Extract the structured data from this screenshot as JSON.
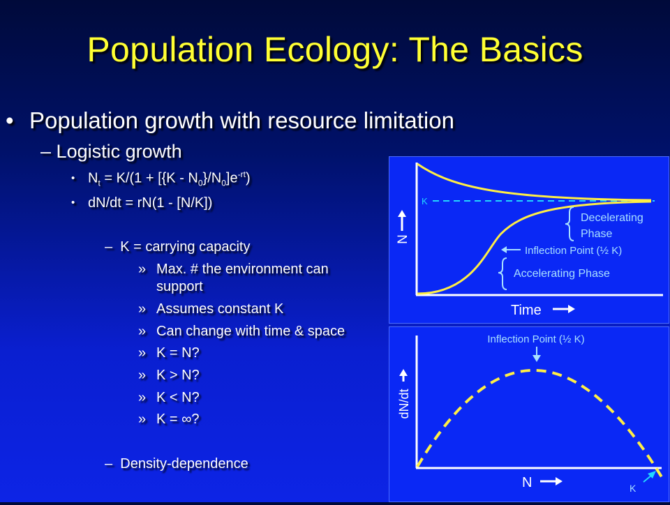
{
  "title": "Population Ecology: The Basics",
  "bullets": {
    "level1": "Population growth with resource limitation",
    "level2": "Logistic growth",
    "eq1": {
      "n": "N",
      "t": "t",
      "mid": " = K/(1 + [{K - N",
      "zero": "0",
      "close": "}/N",
      "zero2": "0",
      "e": "]e",
      "exp": "-rt",
      "end": ")"
    },
    "eq2": "dN/dt = rN(1 - [N/K])",
    "k_def": "K = carrying capacity",
    "sub_items": [
      "Max. # the environment can",
      "support",
      "Assumes constant K",
      "Can change with time & space",
      "K = N?",
      "K > N?",
      "K < N?",
      "K = ∞?"
    ],
    "density": "Density-dependence",
    "dash": "–",
    "dot": "•",
    "raquo": "»"
  },
  "figure_top": {
    "k_label": "K",
    "y_label": "N",
    "x_label": "Time",
    "decel_line1": "Decelerating",
    "decel_line2": "Phase",
    "inflection": "Inflection Point (½ K)",
    "accel": "Accelerating Phase"
  },
  "figure_bottom": {
    "inflection": "Inflection Point (½ K)",
    "y_label": "dN/dt",
    "x_label": "N",
    "k_label": "K"
  },
  "colors": {
    "title": "#ffff33",
    "curve": "#ffee44",
    "dashed_k": "#22d7ff",
    "annotation": "#a8e0ff"
  }
}
